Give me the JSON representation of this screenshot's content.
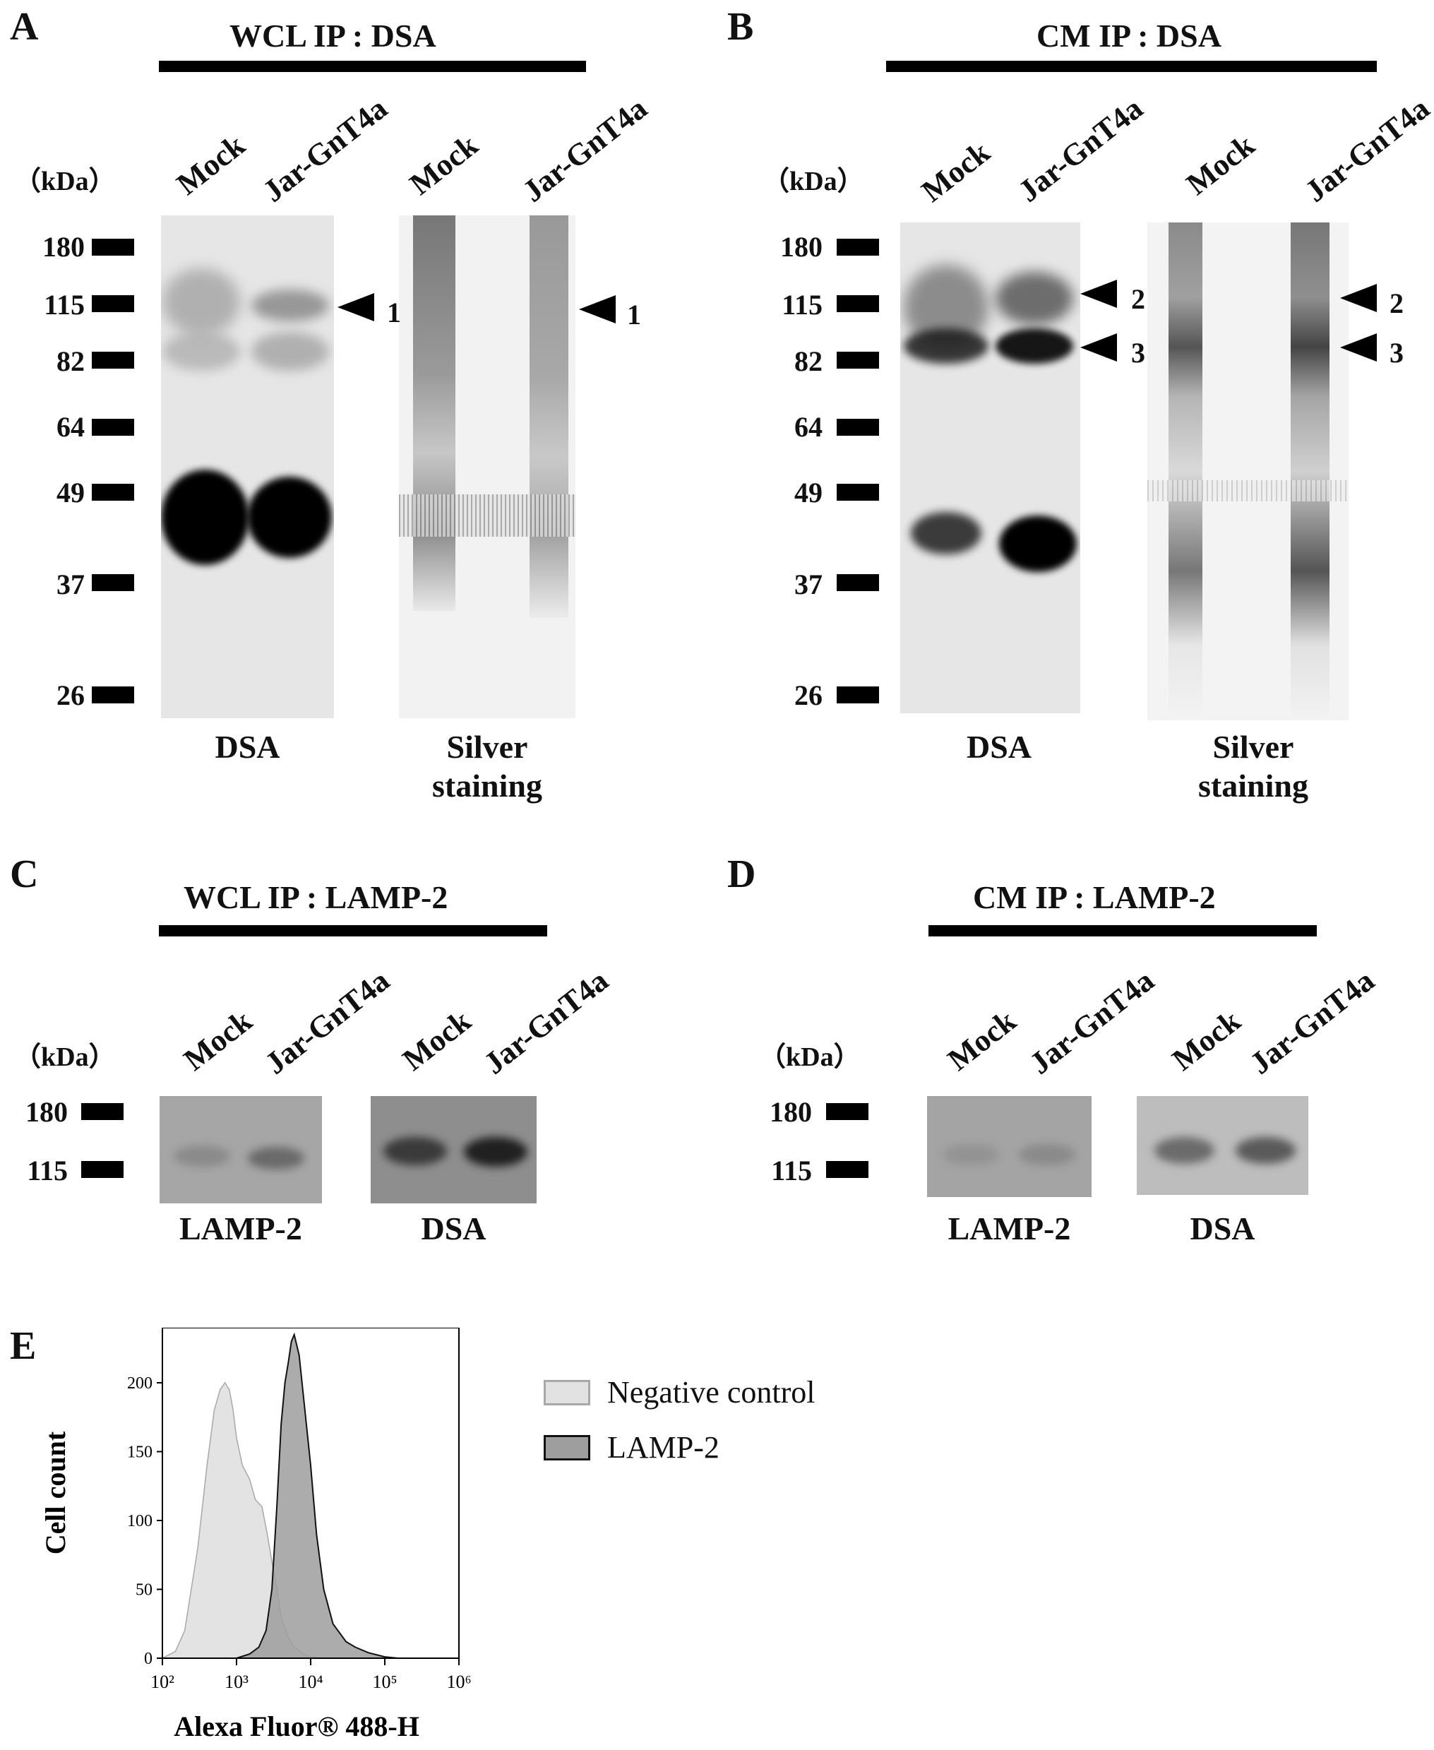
{
  "panels": {
    "A": {
      "letter": "A",
      "title": "WCL    IP : DSA",
      "lanes": [
        "Mock",
        "Jar-GnT4a",
        "Mock",
        "Jar-GnT4a"
      ],
      "kda": "（kDa）",
      "mw": [
        "180",
        "115",
        "82",
        "64",
        "49",
        "37",
        "26"
      ],
      "blot1_label": "DSA",
      "blot2_label": "Silver\nstaining",
      "arrows": [
        "1",
        "1"
      ]
    },
    "B": {
      "letter": "B",
      "title": "CM    IP : DSA",
      "lanes": [
        "Mock",
        "Jar-GnT4a",
        "Mock",
        "Jar-GnT4a"
      ],
      "kda": "（kDa）",
      "mw": [
        "180",
        "115",
        "82",
        "64",
        "49",
        "37",
        "26"
      ],
      "blot1_label": "DSA",
      "blot2_label": "Silver\nstaining",
      "arrows": [
        "2",
        "3",
        "2",
        "3"
      ]
    },
    "C": {
      "letter": "C",
      "title": "WCL    IP : LAMP-2",
      "lanes": [
        "Mock",
        "Jar-GnT4a",
        "Mock",
        "Jar-GnT4a"
      ],
      "kda": "（kDa）",
      "mw": [
        "180",
        "115"
      ],
      "blot1_label": "LAMP-2",
      "blot2_label": "DSA"
    },
    "D": {
      "letter": "D",
      "title": "CM    IP : LAMP-2",
      "lanes": [
        "Mock",
        "Jar-GnT4a",
        "Mock",
        "Jar-GnT4a"
      ],
      "kda": "（kDa）",
      "mw": [
        "180",
        "115"
      ],
      "blot1_label": "LAMP-2",
      "blot2_label": "DSA"
    },
    "E": {
      "letter": "E"
    }
  },
  "chart_data": {
    "type": "area",
    "title": "",
    "xlabel": "Alexa Fluor® 488-H",
    "ylabel": "Cell count",
    "x_scale": "log",
    "xlim": [
      100,
      1000000
    ],
    "ylim": [
      0,
      240
    ],
    "x_ticks": [
      "10²",
      "10³",
      "10⁴",
      "10⁵",
      "10⁶"
    ],
    "y_ticks": [
      "0",
      "50",
      "100",
      "150",
      "200"
    ],
    "legend_position": "right",
    "series": [
      {
        "name": "Negative control",
        "fill": "#e2e2e2",
        "stroke": "#a8a8a8",
        "x": [
          100,
          150,
          200,
          300,
          400,
          500,
          600,
          700,
          800,
          900,
          1000,
          1200,
          1500,
          1800,
          2200,
          2600,
          3000,
          3500,
          4000,
          5000,
          6000,
          8000,
          10000,
          15000,
          20000
        ],
        "y": [
          0,
          5,
          20,
          80,
          140,
          180,
          195,
          200,
          195,
          180,
          160,
          140,
          130,
          115,
          110,
          90,
          70,
          50,
          30,
          15,
          8,
          3,
          1,
          0,
          0
        ]
      },
      {
        "name": "LAMP-2",
        "fill": "#9e9e9e",
        "stroke": "#111111",
        "x": [
          1000,
          1500,
          2000,
          2500,
          3000,
          3500,
          4000,
          4500,
          5000,
          5500,
          6000,
          7000,
          8000,
          10000,
          12000,
          15000,
          20000,
          30000,
          40000,
          60000,
          100000,
          150000
        ],
        "y": [
          0,
          3,
          8,
          20,
          50,
          110,
          170,
          200,
          215,
          230,
          235,
          220,
          190,
          140,
          90,
          50,
          25,
          12,
          8,
          4,
          1,
          0
        ]
      }
    ]
  }
}
